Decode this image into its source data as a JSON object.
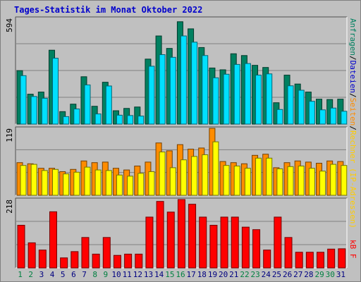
{
  "title": "Tages-Statistik im Monat Oktober 2022",
  "right_labels": {
    "top_rechner": "Rechner (IP-Adressen)",
    "top_slash1": "/",
    "top_seiten": "Seiten",
    "top_slash2": "/",
    "top_dateien": "Dateien",
    "top_slash3": "/",
    "top_anfragen": "Anfragen",
    "middle": "Rechner (IP-Adressen)",
    "bottom": "kB F"
  },
  "colors": {
    "anfragen": "#008060",
    "dateien": "#00e0ff",
    "seiten": "#ff8c00",
    "rechner": "#ffff00",
    "kb": "#ff0000",
    "weekend_day_label": "#008040",
    "weekday_label": "#000080",
    "gridline": "#808080"
  },
  "chart_data": [
    {
      "type": "bar",
      "title": "",
      "ymax_label": "594",
      "ylim": [
        0,
        594
      ],
      "categories": [
        "1",
        "2",
        "3",
        "4",
        "5",
        "6",
        "7",
        "8",
        "9",
        "10",
        "11",
        "12",
        "13",
        "14",
        "15",
        "16",
        "17",
        "18",
        "19",
        "20",
        "21",
        "22",
        "23",
        "24",
        "25",
        "26",
        "27",
        "28",
        "29",
        "30",
        "31"
      ],
      "series": [
        {
          "name": "Anfragen",
          "values": [
            300,
            168,
            180,
            415,
            70,
            112,
            266,
            100,
            235,
            75,
            88,
            96,
            365,
            495,
            425,
            575,
            535,
            430,
            315,
            305,
            395,
            385,
            330,
            318,
            120,
            275,
            225,
            180,
            140,
            138,
            140
          ]
        },
        {
          "name": "Dateien",
          "values": [
            272,
            155,
            145,
            370,
            42,
            85,
            220,
            57,
            214,
            50,
            48,
            45,
            325,
            390,
            375,
            495,
            460,
            385,
            260,
            280,
            335,
            340,
            275,
            282,
            82,
            215,
            190,
            128,
            80,
            90,
            72
          ]
        }
      ]
    },
    {
      "type": "bar",
      "title": "",
      "ymax_label": "119",
      "ylim": [
        0,
        119
      ],
      "categories": [
        "1",
        "2",
        "3",
        "4",
        "5",
        "6",
        "7",
        "8",
        "9",
        "10",
        "11",
        "12",
        "13",
        "14",
        "15",
        "16",
        "17",
        "18",
        "19",
        "20",
        "21",
        "22",
        "23",
        "24",
        "25",
        "26",
        "27",
        "28",
        "29",
        "30",
        "31"
      ],
      "series": [
        {
          "name": "Seiten",
          "values": [
            58,
            56,
            48,
            48,
            42,
            46,
            61,
            58,
            59,
            48,
            45,
            52,
            59,
            93,
            79,
            90,
            82,
            84,
            119,
            60,
            58,
            56,
            71,
            73,
            49,
            58,
            61,
            59,
            57,
            61,
            60
          ]
        },
        {
          "name": "Rechner (IP-Adressen)",
          "values": [
            53,
            55,
            44,
            46,
            38,
            41,
            50,
            45,
            44,
            36,
            34,
            39,
            42,
            77,
            49,
            63,
            69,
            72,
            95,
            53,
            52,
            48,
            66,
            66,
            47,
            51,
            52,
            48,
            43,
            55,
            53
          ]
        }
      ]
    },
    {
      "type": "bar",
      "title": "",
      "ymax_label": "218",
      "ylim": [
        0,
        218
      ],
      "categories": [
        "1",
        "2",
        "3",
        "4",
        "5",
        "6",
        "7",
        "8",
        "9",
        "10",
        "11",
        "12",
        "13",
        "14",
        "15",
        "16",
        "17",
        "18",
        "19",
        "20",
        "21",
        "22",
        "23",
        "24",
        "25",
        "26",
        "27",
        "28",
        "29",
        "30",
        "31"
      ],
      "series": [
        {
          "name": "kB F",
          "values": [
            136,
            80,
            57,
            179,
            32,
            52,
            97,
            44,
            97,
            40,
            44,
            44,
            162,
            212,
            178,
            218,
            203,
            162,
            136,
            162,
            162,
            130,
            122,
            57,
            162,
            97,
            50,
            50,
            50,
            60,
            61
          ]
        }
      ]
    }
  ],
  "x_day_labels": [
    "1",
    "2",
    "3",
    "4",
    "5",
    "6",
    "7",
    "8",
    "9",
    "10",
    "11",
    "12",
    "13",
    "14",
    "15",
    "16",
    "17",
    "18",
    "19",
    "20",
    "21",
    "22",
    "23",
    "24",
    "25",
    "26",
    "27",
    "28",
    "29",
    "30",
    "31"
  ],
  "weekend_days": [
    "1",
    "2",
    "8",
    "9",
    "15",
    "16",
    "22",
    "23",
    "29",
    "30"
  ]
}
